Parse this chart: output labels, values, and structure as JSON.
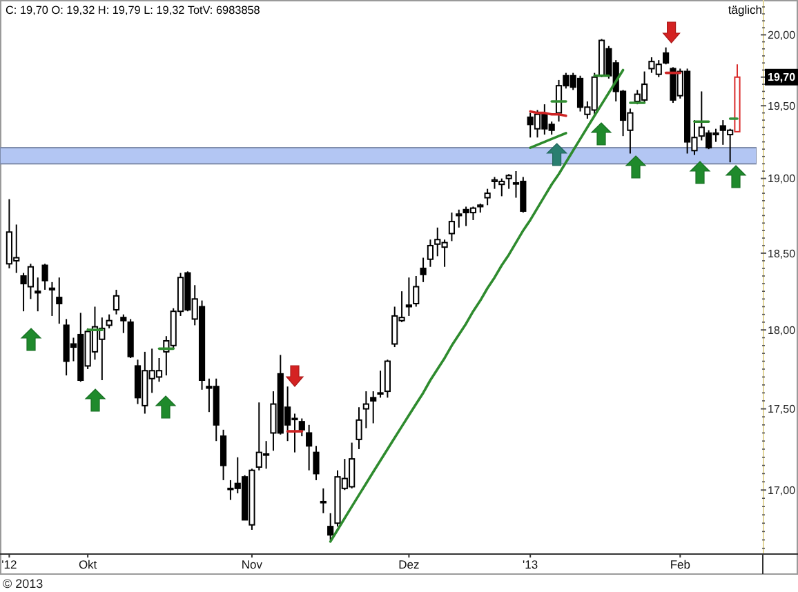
{
  "chart_data": {
    "type": "candlestick",
    "title": "C: 19,70 O: 19,32 H: 19,79 L: 19,32 TotV: 6983858",
    "subtitle": "täglich",
    "categories": [
      "'12",
      null,
      null,
      null,
      null,
      null,
      null,
      null,
      null,
      null,
      null,
      "Okt",
      null,
      null,
      null,
      null,
      null,
      null,
      null,
      null,
      null,
      null,
      null,
      null,
      null,
      null,
      null,
      null,
      null,
      null,
      null,
      null,
      null,
      null,
      "Nov",
      null,
      null,
      null,
      null,
      null,
      null,
      null,
      null,
      null,
      null,
      null,
      null,
      null,
      null,
      null,
      null,
      null,
      null,
      null,
      null,
      null,
      "Dez",
      null,
      null,
      null,
      null,
      null,
      null,
      null,
      null,
      null,
      null,
      null,
      null,
      null,
      null,
      null,
      null,
      "'13",
      null,
      null,
      null,
      null,
      null,
      null,
      null,
      null,
      null,
      null,
      null,
      null,
      null,
      null,
      null,
      null,
      null,
      null,
      null,
      null,
      "Feb",
      null,
      null,
      null,
      null,
      null,
      null,
      null,
      null
    ],
    "ohlc": [
      [
        18.43,
        18.86,
        18.4,
        18.64
      ],
      [
        18.45,
        18.69,
        18.37,
        18.47
      ],
      [
        18.35,
        18.37,
        18.12,
        18.3
      ],
      [
        18.28,
        18.43,
        18.2,
        18.41
      ],
      [
        18.25,
        18.34,
        18.12,
        18.24
      ],
      [
        18.42,
        18.43,
        18.26,
        18.32
      ],
      [
        18.27,
        18.31,
        18.09,
        18.26
      ],
      [
        18.21,
        18.34,
        18.04,
        18.17
      ],
      [
        18.03,
        18.07,
        17.71,
        17.8
      ],
      [
        17.91,
        17.95,
        17.8,
        17.89
      ],
      [
        17.97,
        18.11,
        17.67,
        17.68
      ],
      [
        17.77,
        18.01,
        17.75,
        17.99
      ],
      [
        17.86,
        18.15,
        17.81,
        18.02
      ],
      [
        17.94,
        18.08,
        17.68,
        18.01
      ],
      [
        18.03,
        18.1,
        18.01,
        18.06
      ],
      [
        18.13,
        18.26,
        18.1,
        18.22
      ],
      [
        18.08,
        18.1,
        17.98,
        18.06
      ],
      [
        18.05,
        18.07,
        17.82,
        17.83
      ],
      [
        17.77,
        17.81,
        17.53,
        17.57
      ],
      [
        17.52,
        17.86,
        17.47,
        17.74
      ],
      [
        17.69,
        17.88,
        17.6,
        17.74
      ],
      [
        17.7,
        17.82,
        17.67,
        17.74
      ],
      [
        17.86,
        17.96,
        17.71,
        17.93
      ],
      [
        17.9,
        18.14,
        17.88,
        18.12
      ],
      [
        18.12,
        18.37,
        18.09,
        18.34
      ],
      [
        18.37,
        18.38,
        18.12,
        18.13
      ],
      [
        18.07,
        18.29,
        18.03,
        18.2
      ],
      [
        18.15,
        18.19,
        17.62,
        17.68
      ],
      [
        17.64,
        17.69,
        17.48,
        17.63
      ],
      [
        17.64,
        17.69,
        17.3,
        17.4
      ],
      [
        17.33,
        17.37,
        17.06,
        17.15
      ],
      [
        17.01,
        17.06,
        16.94,
        17.01
      ],
      [
        17.04,
        17.2,
        16.98,
        17.01
      ],
      [
        17.08,
        17.09,
        16.82,
        16.82
      ],
      [
        16.79,
        17.13,
        16.76,
        17.12
      ],
      [
        17.14,
        17.54,
        17.12,
        17.23
      ],
      [
        17.22,
        17.3,
        17.13,
        17.22
      ],
      [
        17.35,
        17.61,
        17.24,
        17.53
      ],
      [
        17.72,
        17.84,
        17.34,
        17.35
      ],
      [
        17.51,
        17.64,
        17.3,
        17.4
      ],
      [
        17.44,
        17.47,
        17.23,
        17.44
      ],
      [
        17.42,
        17.44,
        17.33,
        17.37
      ],
      [
        17.35,
        17.4,
        17.12,
        17.27
      ],
      [
        17.23,
        17.27,
        17.06,
        17.1
      ],
      [
        16.93,
        17.01,
        16.86,
        16.93
      ],
      [
        16.78,
        16.86,
        16.7,
        16.73
      ],
      [
        16.8,
        17.12,
        16.78,
        17.08
      ],
      [
        17.01,
        17.19,
        17.0,
        17.07
      ],
      [
        17.02,
        17.29,
        17.01,
        17.19
      ],
      [
        17.31,
        17.51,
        17.25,
        17.43
      ],
      [
        17.5,
        17.61,
        17.38,
        17.53
      ],
      [
        17.57,
        17.61,
        17.41,
        17.55
      ],
      [
        17.6,
        17.74,
        17.57,
        17.6
      ],
      [
        17.61,
        17.81,
        17.57,
        17.8
      ],
      [
        17.91,
        18.15,
        17.89,
        18.09
      ],
      [
        18.06,
        18.25,
        18.05,
        18.08
      ],
      [
        18.16,
        18.34,
        18.09,
        18.15
      ],
      [
        18.17,
        18.35,
        18.15,
        18.28
      ],
      [
        18.4,
        18.47,
        18.31,
        18.36
      ],
      [
        18.46,
        18.59,
        18.41,
        18.55
      ],
      [
        18.56,
        18.67,
        18.48,
        18.59
      ],
      [
        18.54,
        18.59,
        18.41,
        18.57
      ],
      [
        18.63,
        18.77,
        18.58,
        18.71
      ],
      [
        18.75,
        18.79,
        18.67,
        18.76
      ],
      [
        18.79,
        18.81,
        18.68,
        18.77
      ],
      [
        18.77,
        18.81,
        18.72,
        18.8
      ],
      [
        18.81,
        18.83,
        18.77,
        18.82
      ],
      [
        18.87,
        18.93,
        18.82,
        18.9
      ],
      [
        18.98,
        19.01,
        18.93,
        18.99
      ],
      [
        18.96,
        19.0,
        18.88,
        18.98
      ],
      [
        19.0,
        19.03,
        18.93,
        19.02
      ],
      [
        18.97,
        19.05,
        18.87,
        18.97
      ],
      [
        18.98,
        19.01,
        18.77,
        18.78
      ],
      [
        19.42,
        19.45,
        19.28,
        19.37
      ],
      [
        19.34,
        19.47,
        19.28,
        19.44
      ],
      [
        19.44,
        19.51,
        19.3,
        19.34
      ],
      [
        19.37,
        19.39,
        19.3,
        19.33
      ],
      [
        19.45,
        19.68,
        19.39,
        19.64
      ],
      [
        19.71,
        19.73,
        19.62,
        19.64
      ],
      [
        19.71,
        19.73,
        19.61,
        19.63
      ],
      [
        19.69,
        19.71,
        19.46,
        19.49
      ],
      [
        19.44,
        19.53,
        19.41,
        19.49
      ],
      [
        19.47,
        19.73,
        19.44,
        19.7
      ],
      [
        19.71,
        19.97,
        19.7,
        19.96
      ],
      [
        19.9,
        19.92,
        19.69,
        19.71
      ],
      [
        19.8,
        19.82,
        19.53,
        19.6
      ],
      [
        19.6,
        19.61,
        19.29,
        19.4
      ],
      [
        19.33,
        19.48,
        19.17,
        19.45
      ],
      [
        19.53,
        19.61,
        19.51,
        19.58
      ],
      [
        19.54,
        19.74,
        19.52,
        19.65
      ],
      [
        19.76,
        19.84,
        19.73,
        19.81
      ],
      [
        19.72,
        19.82,
        19.7,
        19.79
      ],
      [
        19.87,
        19.91,
        19.79,
        19.8
      ],
      [
        19.76,
        19.77,
        19.52,
        19.54
      ],
      [
        19.57,
        19.76,
        19.55,
        19.74
      ],
      [
        19.74,
        19.76,
        19.17,
        19.25
      ],
      [
        19.19,
        19.4,
        19.16,
        19.28
      ],
      [
        19.29,
        19.6,
        19.26,
        19.35
      ],
      [
        19.31,
        19.33,
        19.2,
        19.21
      ],
      [
        19.3,
        19.34,
        19.25,
        19.31
      ],
      [
        19.36,
        19.4,
        19.23,
        19.33
      ],
      [
        19.3,
        19.34,
        19.11,
        19.33
      ],
      [
        19.32,
        19.79,
        19.32,
        19.7
      ]
    ],
    "colors": [
      "#000000",
      "#000000",
      "#000000",
      "#000000",
      "#000000",
      "#000000",
      "#000000",
      "#000000",
      "#000000",
      "#000000",
      "#000000",
      "#000000",
      "#000000",
      "#000000",
      "#000000",
      "#000000",
      "#000000",
      "#000000",
      "#000000",
      "#000000",
      "#000000",
      "#000000",
      "#000000",
      "#000000",
      "#000000",
      "#000000",
      "#000000",
      "#000000",
      "#000000",
      "#000000",
      "#000000",
      "#000000",
      "#000000",
      "#000000",
      "#000000",
      "#000000",
      "#000000",
      "#000000",
      "#000000",
      "#000000",
      "#000000",
      "#000000",
      "#000000",
      "#000000",
      "#000000",
      "#000000",
      "#000000",
      "#000000",
      "#000000",
      "#000000",
      "#000000",
      "#000000",
      "#000000",
      "#000000",
      "#000000",
      "#000000",
      "#000000",
      "#000000",
      "#000000",
      "#000000",
      "#000000",
      "#000000",
      "#000000",
      "#000000",
      "#000000",
      "#000000",
      "#000000",
      "#000000",
      "#000000",
      "#000000",
      "#000000",
      "#000000",
      "#000000",
      "#000000",
      "#000000",
      "#000000",
      "#000000",
      "#000000",
      "#000000",
      "#000000",
      "#000000",
      "#000000",
      "#000000",
      "#000000",
      "#000000",
      "#000000",
      "#000000",
      "#000000",
      "#000000",
      "#000000",
      "#000000",
      "#000000",
      "#000000",
      "#000000",
      "#000000",
      "#000000",
      "#000000",
      "#000000",
      "#000000",
      "#000000",
      "#000000",
      "#000000",
      "#d92b2b"
    ],
    "series": [
      {
        "type": "line",
        "color": "#2e8b2e",
        "values": [
          null,
          null,
          null,
          null,
          null,
          null,
          null,
          null,
          null,
          null,
          null,
          null,
          null,
          null,
          null,
          null,
          null,
          null,
          null,
          null,
          null,
          null,
          null,
          null,
          null,
          null,
          null,
          null,
          null,
          null,
          null,
          null,
          null,
          null,
          null,
          null,
          null,
          null,
          null,
          null,
          null,
          null,
          null,
          null,
          null,
          16.69,
          16.76,
          16.83,
          16.9,
          16.97,
          17.04,
          17.11,
          17.18,
          17.25,
          17.32,
          17.39,
          17.46,
          17.53,
          17.6,
          17.68,
          17.75,
          17.82,
          17.9,
          17.97,
          18.04,
          18.12,
          18.19,
          18.27,
          18.34,
          18.42,
          18.49,
          18.57,
          18.65,
          18.72,
          18.8,
          18.88,
          18.96,
          19.03,
          19.11,
          19.19,
          19.27,
          19.35,
          19.43,
          19.51,
          19.59,
          19.67,
          19.75,
          null,
          null,
          null,
          null,
          null,
          null,
          null,
          null,
          null,
          null,
          null,
          null,
          null,
          null,
          null,
          null
        ]
      },
      {
        "type": "line",
        "color": "#cc2222",
        "values": [
          null,
          null,
          null,
          null,
          null,
          null,
          null,
          null,
          null,
          null,
          null,
          null,
          null,
          null,
          null,
          null,
          null,
          null,
          null,
          null,
          null,
          null,
          null,
          null,
          null,
          null,
          null,
          null,
          null,
          null,
          null,
          null,
          null,
          null,
          null,
          null,
          null,
          null,
          null,
          17.36,
          17.36,
          17.36,
          null,
          null,
          null,
          null,
          null,
          null,
          null,
          null,
          null,
          null,
          null,
          null,
          null,
          null,
          null,
          null,
          null,
          null,
          null,
          null,
          null,
          null,
          null,
          null,
          null,
          null,
          null,
          null,
          null,
          null,
          null,
          null,
          null,
          null,
          null,
          null,
          null,
          null,
          null,
          null,
          null,
          null,
          null,
          null,
          null,
          null,
          null,
          null,
          null,
          null,
          null,
          null,
          null,
          null,
          null,
          null,
          null,
          null,
          null,
          null,
          null
        ]
      },
      {
        "type": "line",
        "color": "#2f8c30",
        "values": [
          null,
          null,
          null,
          null,
          null,
          null,
          null,
          null,
          null,
          null,
          null,
          18.0,
          18.0,
          18.0,
          null,
          null,
          null,
          null,
          null,
          null,
          null,
          null,
          null,
          null,
          null,
          null,
          null,
          null,
          null,
          null,
          null,
          null,
          null,
          null,
          null,
          null,
          null,
          null,
          null,
          null,
          null,
          null,
          null,
          null,
          null,
          null,
          null,
          null,
          null,
          null,
          null,
          null,
          null,
          null,
          null,
          null,
          null,
          null,
          null,
          null,
          null,
          null,
          null,
          null,
          null,
          null,
          null,
          null,
          null,
          null,
          null,
          null,
          null,
          null,
          null,
          null,
          null,
          null,
          null,
          null,
          null,
          null,
          null,
          null,
          null,
          null,
          null,
          null,
          null,
          null,
          null,
          null,
          null,
          null,
          null,
          null,
          null,
          null,
          null,
          null,
          null,
          null,
          null
        ]
      },
      {
        "type": "line",
        "color": "#308d31",
        "values": [
          null,
          null,
          null,
          null,
          null,
          null,
          null,
          null,
          null,
          null,
          null,
          null,
          null,
          null,
          null,
          null,
          null,
          null,
          null,
          null,
          null,
          17.88,
          17.88,
          17.88,
          null,
          null,
          null,
          null,
          null,
          null,
          null,
          null,
          null,
          null,
          null,
          null,
          null,
          null,
          null,
          null,
          null,
          null,
          null,
          null,
          null,
          null,
          null,
          null,
          null,
          null,
          null,
          null,
          null,
          null,
          null,
          null,
          null,
          null,
          null,
          null,
          null,
          null,
          null,
          null,
          null,
          null,
          null,
          null,
          null,
          null,
          null,
          null,
          null,
          null,
          null,
          null,
          null,
          null,
          null,
          null,
          null,
          null,
          null,
          null,
          null,
          null,
          null,
          null,
          null,
          null,
          null,
          null,
          null,
          null,
          null,
          null,
          null,
          null,
          null,
          null,
          null,
          null,
          null
        ]
      },
      {
        "type": "line",
        "color": "#cd2424",
        "values": [
          null,
          null,
          null,
          null,
          null,
          null,
          null,
          null,
          null,
          null,
          null,
          null,
          null,
          null,
          null,
          null,
          null,
          null,
          null,
          null,
          null,
          null,
          null,
          null,
          null,
          null,
          null,
          null,
          null,
          null,
          null,
          null,
          null,
          null,
          null,
          null,
          null,
          null,
          null,
          null,
          null,
          null,
          null,
          null,
          null,
          null,
          null,
          null,
          null,
          null,
          null,
          null,
          null,
          null,
          null,
          null,
          null,
          null,
          null,
          null,
          null,
          null,
          null,
          null,
          null,
          null,
          null,
          null,
          null,
          null,
          null,
          null,
          null,
          19.46,
          19.45,
          19.45,
          19.44,
          19.44,
          19.43,
          null,
          null,
          null,
          null,
          null,
          null,
          null,
          null,
          null,
          null,
          null,
          null,
          null,
          null,
          null,
          null,
          null,
          null,
          null,
          null,
          null,
          null,
          null,
          null
        ]
      },
      {
        "type": "line",
        "color": "#2d8a2d",
        "values": [
          null,
          null,
          null,
          null,
          null,
          null,
          null,
          null,
          null,
          null,
          null,
          null,
          null,
          null,
          null,
          null,
          null,
          null,
          null,
          null,
          null,
          null,
          null,
          null,
          null,
          null,
          null,
          null,
          null,
          null,
          null,
          null,
          null,
          null,
          null,
          null,
          null,
          null,
          null,
          null,
          null,
          null,
          null,
          null,
          null,
          null,
          null,
          null,
          null,
          null,
          null,
          null,
          null,
          null,
          null,
          null,
          null,
          null,
          null,
          null,
          null,
          null,
          null,
          null,
          null,
          null,
          null,
          null,
          null,
          null,
          null,
          null,
          null,
          19.21,
          19.23,
          19.25,
          19.27,
          19.29,
          19.31,
          null,
          null,
          null,
          null,
          null,
          null,
          null,
          null,
          null,
          null,
          null,
          null,
          null,
          null,
          null,
          null,
          null,
          null,
          null,
          null,
          null,
          null,
          null,
          null
        ]
      },
      {
        "type": "line",
        "color": "#318e32",
        "values": [
          null,
          null,
          null,
          null,
          null,
          null,
          null,
          null,
          null,
          null,
          null,
          null,
          null,
          null,
          null,
          null,
          null,
          null,
          null,
          null,
          null,
          null,
          null,
          null,
          null,
          null,
          null,
          null,
          null,
          null,
          null,
          null,
          null,
          null,
          null,
          null,
          null,
          null,
          null,
          null,
          null,
          null,
          null,
          null,
          null,
          null,
          null,
          null,
          null,
          null,
          null,
          null,
          null,
          null,
          null,
          null,
          null,
          null,
          null,
          null,
          null,
          null,
          null,
          null,
          null,
          null,
          null,
          null,
          null,
          null,
          null,
          null,
          null,
          null,
          null,
          null,
          19.53,
          19.53,
          19.53,
          null,
          null,
          null,
          null,
          null,
          null,
          null,
          null,
          null,
          null,
          null,
          null,
          null,
          null,
          null,
          null,
          null,
          null,
          null,
          null,
          null,
          null,
          null,
          null
        ]
      },
      {
        "type": "line",
        "color": "#2c892c",
        "values": [
          null,
          null,
          null,
          null,
          null,
          null,
          null,
          null,
          null,
          null,
          null,
          null,
          null,
          null,
          null,
          null,
          null,
          null,
          null,
          null,
          null,
          null,
          null,
          null,
          null,
          null,
          null,
          null,
          null,
          null,
          null,
          null,
          null,
          null,
          null,
          null,
          null,
          null,
          null,
          null,
          null,
          null,
          null,
          null,
          null,
          null,
          null,
          null,
          null,
          null,
          null,
          null,
          null,
          null,
          null,
          null,
          null,
          null,
          null,
          null,
          null,
          null,
          null,
          null,
          null,
          null,
          null,
          null,
          null,
          null,
          null,
          null,
          null,
          null,
          null,
          null,
          null,
          null,
          null,
          null,
          null,
          null,
          19.71,
          19.71,
          19.71,
          null,
          null,
          null,
          null,
          null,
          null,
          null,
          null,
          null,
          null,
          null,
          null,
          null,
          null,
          null,
          null,
          null,
          null
        ]
      },
      {
        "type": "line",
        "color": "#328f33",
        "values": [
          null,
          null,
          null,
          null,
          null,
          null,
          null,
          null,
          null,
          null,
          null,
          null,
          null,
          null,
          null,
          null,
          null,
          null,
          null,
          null,
          null,
          null,
          null,
          null,
          null,
          null,
          null,
          null,
          null,
          null,
          null,
          null,
          null,
          null,
          null,
          null,
          null,
          null,
          null,
          null,
          null,
          null,
          null,
          null,
          null,
          null,
          null,
          null,
          null,
          null,
          null,
          null,
          null,
          null,
          null,
          null,
          null,
          null,
          null,
          null,
          null,
          null,
          null,
          null,
          null,
          null,
          null,
          null,
          null,
          null,
          null,
          null,
          null,
          null,
          null,
          null,
          null,
          null,
          null,
          null,
          null,
          null,
          null,
          null,
          null,
          null,
          null,
          19.52,
          19.52,
          19.52,
          null,
          null,
          null,
          null,
          null,
          null,
          null,
          null,
          null,
          null,
          null,
          null,
          null
        ]
      },
      {
        "type": "line",
        "color": "#ce2626",
        "values": [
          null,
          null,
          null,
          null,
          null,
          null,
          null,
          null,
          null,
          null,
          null,
          null,
          null,
          null,
          null,
          null,
          null,
          null,
          null,
          null,
          null,
          null,
          null,
          null,
          null,
          null,
          null,
          null,
          null,
          null,
          null,
          null,
          null,
          null,
          null,
          null,
          null,
          null,
          null,
          null,
          null,
          null,
          null,
          null,
          null,
          null,
          null,
          null,
          null,
          null,
          null,
          null,
          null,
          null,
          null,
          null,
          null,
          null,
          null,
          null,
          null,
          null,
          null,
          null,
          null,
          null,
          null,
          null,
          null,
          null,
          null,
          null,
          null,
          null,
          null,
          null,
          null,
          null,
          null,
          null,
          null,
          null,
          null,
          null,
          null,
          null,
          null,
          null,
          null,
          null,
          null,
          null,
          19.73,
          19.73,
          19.73,
          null,
          null,
          null,
          null,
          null,
          null,
          null,
          null
        ]
      },
      {
        "type": "line",
        "color": "#2b882b",
        "values": [
          null,
          null,
          null,
          null,
          null,
          null,
          null,
          null,
          null,
          null,
          null,
          null,
          null,
          null,
          null,
          null,
          null,
          null,
          null,
          null,
          null,
          null,
          null,
          null,
          null,
          null,
          null,
          null,
          null,
          null,
          null,
          null,
          null,
          null,
          null,
          null,
          null,
          null,
          null,
          null,
          null,
          null,
          null,
          null,
          null,
          null,
          null,
          null,
          null,
          null,
          null,
          null,
          null,
          null,
          null,
          null,
          null,
          null,
          null,
          null,
          null,
          null,
          null,
          null,
          null,
          null,
          null,
          null,
          null,
          null,
          null,
          null,
          null,
          null,
          null,
          null,
          null,
          null,
          null,
          null,
          null,
          null,
          null,
          null,
          null,
          null,
          null,
          null,
          null,
          null,
          null,
          null,
          null,
          null,
          null,
          null,
          19.39,
          19.39,
          19.39,
          null,
          null,
          null,
          null
        ]
      },
      {
        "type": "line",
        "color": "#33903a",
        "values": [
          null,
          null,
          null,
          null,
          null,
          null,
          null,
          null,
          null,
          null,
          null,
          null,
          null,
          null,
          null,
          null,
          null,
          null,
          null,
          null,
          null,
          null,
          null,
          null,
          null,
          null,
          null,
          null,
          null,
          null,
          null,
          null,
          null,
          null,
          null,
          null,
          null,
          null,
          null,
          null,
          null,
          null,
          null,
          null,
          null,
          null,
          null,
          null,
          null,
          null,
          null,
          null,
          null,
          null,
          null,
          null,
          null,
          null,
          null,
          null,
          null,
          null,
          null,
          null,
          null,
          null,
          null,
          null,
          null,
          null,
          null,
          null,
          null,
          null,
          null,
          null,
          null,
          null,
          null,
          null,
          null,
          null,
          null,
          null,
          null,
          null,
          null,
          null,
          null,
          null,
          null,
          null,
          null,
          null,
          null,
          null,
          null,
          null,
          null,
          null,
          null,
          19.41,
          19.41
        ]
      }
    ],
    "bands": [
      {
        "axis": "y",
        "from": 19.1,
        "to": 19.21,
        "color": "#b3c6f3"
      }
    ],
    "ylim": [
      16.62,
      20.25
    ],
    "log": true,
    "yticks": [
      {
        "value": 16.65,
        "label": null
      },
      {
        "value": 16.7,
        "label": null
      },
      {
        "value": 16.75,
        "label": null
      },
      {
        "value": 16.8,
        "label": null
      },
      {
        "value": 16.85,
        "label": null
      },
      {
        "value": 16.9,
        "label": null
      },
      {
        "value": 16.95,
        "label": null
      },
      {
        "value": 17,
        "label": "17,00"
      },
      {
        "value": 17.05,
        "label": null
      },
      {
        "value": 17.1,
        "label": null
      },
      {
        "value": 17.15,
        "label": null
      },
      {
        "value": 17.2,
        "label": null
      },
      {
        "value": 17.25,
        "label": null
      },
      {
        "value": 17.3,
        "label": null
      },
      {
        "value": 17.35,
        "label": null
      },
      {
        "value": 17.4,
        "label": null
      },
      {
        "value": 17.45,
        "label": null
      },
      {
        "value": 17.5,
        "label": "17,50"
      },
      {
        "value": 17.55,
        "label": null
      },
      {
        "value": 17.6,
        "label": null
      },
      {
        "value": 17.65,
        "label": null
      },
      {
        "value": 17.7,
        "label": null
      },
      {
        "value": 17.75,
        "label": null
      },
      {
        "value": 17.8,
        "label": null
      },
      {
        "value": 17.85,
        "label": null
      },
      {
        "value": 17.9,
        "label": null
      },
      {
        "value": 17.95,
        "label": null
      },
      {
        "value": 18,
        "label": "18,00"
      },
      {
        "value": 18.05,
        "label": null
      },
      {
        "value": 18.1,
        "label": null
      },
      {
        "value": 18.15,
        "label": null
      },
      {
        "value": 18.2,
        "label": null
      },
      {
        "value": 18.25,
        "label": null
      },
      {
        "value": 18.3,
        "label": null
      },
      {
        "value": 18.35,
        "label": null
      },
      {
        "value": 18.4,
        "label": null
      },
      {
        "value": 18.45,
        "label": null
      },
      {
        "value": 18.5,
        "label": "18,50"
      },
      {
        "value": 18.55,
        "label": null
      },
      {
        "value": 18.6,
        "label": null
      },
      {
        "value": 18.65,
        "label": null
      },
      {
        "value": 18.7,
        "label": null
      },
      {
        "value": 18.75,
        "label": null
      },
      {
        "value": 18.8,
        "label": null
      },
      {
        "value": 18.85,
        "label": null
      },
      {
        "value": 18.9,
        "label": null
      },
      {
        "value": 18.95,
        "label": null
      },
      {
        "value": 19,
        "label": "19,00"
      },
      {
        "value": 19.05,
        "label": null
      },
      {
        "value": 19.1,
        "label": null
      },
      {
        "value": 19.15,
        "label": null
      },
      {
        "value": 19.2,
        "label": null
      },
      {
        "value": 19.25,
        "label": null
      },
      {
        "value": 19.3,
        "label": null
      },
      {
        "value": 19.35,
        "label": null
      },
      {
        "value": 19.4,
        "label": null
      },
      {
        "value": 19.45,
        "label": null
      },
      {
        "value": 19.5,
        "label": "19,50"
      },
      {
        "value": 19.55,
        "label": null
      },
      {
        "value": 19.6,
        "label": null
      },
      {
        "value": 19.65,
        "label": null
      },
      {
        "value": 19.7,
        "label": "19,70"
      },
      {
        "value": 19.75,
        "label": null
      },
      {
        "value": 19.8,
        "label": null
      },
      {
        "value": 19.85,
        "label": null
      },
      {
        "value": 19.9,
        "label": null
      },
      {
        "value": 19.95,
        "label": null
      },
      {
        "value": 20,
        "label": "20,00"
      },
      {
        "value": 20.05,
        "label": null
      },
      {
        "value": 20.1,
        "label": null
      },
      {
        "value": 20.15,
        "label": null
      },
      {
        "value": 20.2,
        "label": null
      }
    ],
    "annotations": [
      "© 2013"
    ]
  }
}
